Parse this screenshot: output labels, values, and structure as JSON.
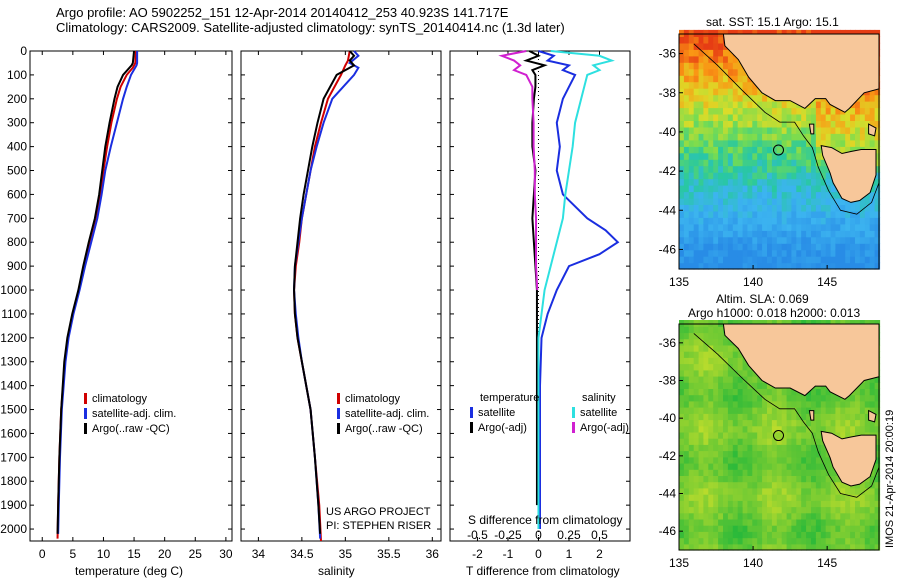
{
  "header": {
    "title_line1": "Argo profile: AO 5902252_151 12-Apr-2014 20140412_253 40.923S 141.717E",
    "title_line2": "Climatology: CARS2009. Satellite-adjusted climatology: synTS_20140414.nc (1.3d later)"
  },
  "colors": {
    "climatology": "#d00000",
    "satellite_adj": "#1a2ee0",
    "argo": "#000000",
    "salinity_satellite": "#2de0e0",
    "salinity_argo": "#d020d0",
    "land": "#f7c79a"
  },
  "chart_data": [
    {
      "id": "temperature",
      "type": "line",
      "xlabel": "temperature (deg C)",
      "ylabel": "",
      "xlim": [
        -2,
        31
      ],
      "ylim": [
        2050,
        0
      ],
      "xticks": [
        0,
        5,
        10,
        15,
        20,
        25,
        30
      ],
      "yticks": [
        0,
        100,
        200,
        300,
        400,
        500,
        600,
        700,
        800,
        900,
        1000,
        1100,
        1200,
        1300,
        1400,
        1500,
        1600,
        1700,
        1800,
        1900,
        2000
      ],
      "legend": [
        "climatology",
        "satellite-adj. clim.",
        "Argo(..raw -QC)"
      ],
      "legend_position": "lower-center",
      "series": [
        {
          "name": "climatology",
          "color": "#d00000",
          "depth": [
            0,
            50,
            70,
            100,
            150,
            200,
            300,
            400,
            500,
            600,
            700,
            800,
            900,
            1000,
            1100,
            1200,
            1300,
            1500,
            1700,
            1900,
            2040
          ],
          "values": [
            15.3,
            15.2,
            14.8,
            13.8,
            12.8,
            12.2,
            11.3,
            10.6,
            10.0,
            9.5,
            8.9,
            7.9,
            6.9,
            6.0,
            5.0,
            4.2,
            3.7,
            3.1,
            2.8,
            2.6,
            2.5
          ]
        },
        {
          "name": "satellite-adj. clim.",
          "color": "#1a2ee0",
          "depth": [
            0,
            50,
            60,
            100,
            150,
            200,
            300,
            400,
            500,
            600,
            700,
            800,
            900,
            1000,
            1100,
            1200,
            1300,
            1500,
            1700,
            1900,
            2020
          ],
          "values": [
            15.5,
            15.5,
            15.4,
            14.5,
            13.8,
            13.2,
            12.2,
            11.2,
            10.3,
            9.7,
            9.0,
            8.0,
            7.0,
            6.1,
            5.1,
            4.3,
            3.8,
            3.2,
            2.9,
            2.7,
            2.6
          ]
        },
        {
          "name": "Argo(..raw -QC)",
          "color": "#000000",
          "depth": [
            0,
            50,
            60,
            100,
            150,
            200,
            300,
            400,
            500,
            600,
            700,
            800,
            900,
            1000,
            1100,
            1200,
            1300,
            1500,
            1700,
            1900,
            2020
          ],
          "values": [
            15.0,
            14.8,
            14.6,
            13.2,
            12.3,
            11.8,
            11.0,
            10.3,
            9.8,
            9.3,
            8.6,
            7.6,
            6.7,
            5.9,
            4.9,
            4.1,
            3.6,
            3.1,
            2.8,
            2.6,
            2.5
          ]
        }
      ]
    },
    {
      "id": "salinity",
      "type": "line",
      "xlabel": "salinity",
      "ylabel": "",
      "xlim": [
        33.8,
        36.1
      ],
      "ylim": [
        2050,
        0
      ],
      "xticks": [
        34,
        34.5,
        35,
        35.5,
        36
      ],
      "legend": [
        "climatology",
        "satellite-adj. clim.",
        "Argo(..raw -QC)"
      ],
      "legend_position": "lower-center",
      "series": [
        {
          "name": "climatology",
          "color": "#d00000",
          "depth": [
            0,
            40,
            60,
            100,
            200,
            300,
            400,
            500,
            600,
            700,
            800,
            900,
            1000,
            1100,
            1200,
            1300,
            1400,
            1500,
            1700,
            1900,
            2050
          ],
          "values": [
            35.05,
            35.03,
            35.0,
            34.95,
            34.8,
            34.72,
            34.65,
            34.6,
            34.55,
            34.5,
            34.47,
            34.43,
            34.41,
            34.42,
            34.45,
            34.5,
            34.55,
            34.6,
            34.65,
            34.7,
            34.72
          ]
        },
        {
          "name": "satellite-adj. clim.",
          "color": "#1a2ee0",
          "depth": [
            0,
            20,
            50,
            70,
            100,
            200,
            300,
            400,
            500,
            600,
            700,
            800,
            900,
            1000,
            1100,
            1200,
            1300,
            1400,
            1500,
            1700,
            1900,
            2040
          ],
          "values": [
            35.1,
            35.15,
            35.05,
            35.15,
            35.1,
            34.85,
            34.75,
            34.67,
            34.6,
            34.55,
            34.5,
            34.46,
            34.42,
            34.41,
            34.43,
            34.46,
            34.5,
            34.55,
            34.6,
            34.65,
            34.69,
            34.71
          ]
        },
        {
          "name": "Argo(..raw -QC)",
          "color": "#000000",
          "depth": [
            0,
            20,
            40,
            60,
            80,
            100,
            200,
            300,
            400,
            500,
            600,
            700,
            800,
            900,
            1000,
            1100,
            1200,
            1300,
            1400,
            1500,
            1700,
            1900,
            2020
          ],
          "values": [
            35.05,
            35.1,
            35.05,
            35.1,
            35.0,
            34.9,
            34.75,
            34.68,
            34.62,
            34.57,
            34.52,
            34.48,
            34.45,
            34.42,
            34.41,
            34.42,
            34.45,
            34.5,
            34.55,
            34.6,
            34.65,
            34.69,
            34.71
          ]
        }
      ]
    },
    {
      "id": "difference",
      "type": "line",
      "xlabel": "T difference from climatology",
      "xlabel2": "S difference from climatology",
      "ylim": [
        2050,
        0
      ],
      "xlim": [
        -2.9,
        3.0
      ],
      "xticks_bottom": [
        -2,
        -1,
        0,
        1,
        2
      ],
      "xticks_top": [
        -0.5,
        -0.25,
        0,
        0.25,
        0.5
      ],
      "xticklabels_top": [
        "-0.5",
        "-0.25",
        "0",
        "0.25",
        "0.5"
      ],
      "legend_temperature_title": "temperature",
      "legend_salinity_title": "salinity",
      "legend_temperature": [
        "satellite",
        "Argo(-adj)"
      ],
      "legend_salinity": [
        "satellite",
        "Argo(-adj)"
      ],
      "series": [
        {
          "name": "satellite",
          "color": "#1a2ee0",
          "depth": [
            0,
            20,
            40,
            60,
            80,
            100,
            150,
            200,
            300,
            400,
            500,
            600,
            700,
            750,
            800,
            850,
            900,
            1000,
            1100,
            1200,
            1400,
            1600,
            1800,
            2000
          ],
          "values": [
            0.0,
            0.5,
            0.3,
            1.0,
            0.8,
            1.2,
            1.0,
            0.8,
            0.6,
            0.7,
            0.6,
            0.8,
            1.6,
            2.2,
            2.6,
            2.0,
            1.0,
            0.6,
            0.3,
            0.1,
            0.05,
            0.05,
            0.05,
            0.05
          ]
        },
        {
          "name": "Argo(-adj)",
          "color": "#000000",
          "depth": [
            0,
            20,
            40,
            60,
            80,
            100,
            150,
            200,
            300,
            400,
            500,
            600,
            700,
            800,
            900,
            1000,
            1100,
            1200,
            1400,
            1600,
            1800,
            1900
          ],
          "values": [
            -0.3,
            0.0,
            -0.4,
            0.2,
            -0.2,
            -0.1,
            -0.1,
            -0.15,
            -0.2,
            -0.2,
            -0.1,
            -0.15,
            -0.2,
            -0.15,
            -0.1,
            -0.05,
            -0.05,
            -0.05,
            -0.05,
            -0.05,
            -0.05,
            -0.05
          ]
        },
        {
          "name": "satellite (salinity)",
          "color": "#2de0e0",
          "depth": [
            0,
            20,
            40,
            60,
            80,
            100,
            200,
            300,
            400,
            500,
            600,
            700,
            800,
            900,
            1000,
            1200,
            1400,
            1600,
            1800,
            2000
          ],
          "values": [
            0.1,
            0.5,
            0.6,
            0.45,
            0.5,
            0.4,
            0.35,
            0.3,
            0.28,
            0.25,
            0.22,
            0.2,
            0.15,
            0.1,
            0.05,
            0.0,
            0.0,
            0.0,
            0.0,
            0.0
          ]
        },
        {
          "name": "Argo(-adj) (salinity)",
          "color": "#d020d0",
          "depth": [
            0,
            20,
            40,
            60,
            80,
            100,
            150,
            200,
            300,
            400,
            500,
            600,
            700,
            800,
            900,
            1000
          ],
          "values": [
            -0.1,
            -0.3,
            -0.2,
            -0.15,
            -0.2,
            -0.1,
            -0.05,
            -0.05,
            -0.04,
            -0.04,
            -0.03,
            -0.03,
            -0.02,
            -0.02,
            -0.02,
            -0.01
          ]
        }
      ]
    },
    {
      "id": "sst-map",
      "type": "heatmap",
      "title": "sat. SST: 15.1  Argo: 15.1",
      "xlim": [
        135,
        148.5
      ],
      "ylim": [
        -47,
        -35
      ],
      "xticks": [
        135,
        140,
        145
      ],
      "yticks": [
        -36,
        -38,
        -40,
        -42,
        -44,
        -46
      ],
      "profile_location": {
        "lon": 141.717,
        "lat": -40.923
      }
    },
    {
      "id": "sla-map",
      "type": "heatmap",
      "title_line1": "Altim. SLA: 0.069",
      "title_line2": "Argo h1000: 0.018 h2000: 0.013",
      "xlim": [
        135,
        148.5
      ],
      "ylim": [
        -47,
        -35
      ],
      "xticks": [
        135,
        140,
        145
      ],
      "yticks": [
        -36,
        -38,
        -40,
        -42,
        -44,
        -46
      ],
      "profile_location": {
        "lon": 141.717,
        "lat": -40.923
      }
    }
  ],
  "credits": {
    "project_line1": "US ARGO PROJECT",
    "project_line2": "PI: STEPHEN RISER",
    "stamp": "IMOS 21-Apr-2014 20:00:19"
  }
}
